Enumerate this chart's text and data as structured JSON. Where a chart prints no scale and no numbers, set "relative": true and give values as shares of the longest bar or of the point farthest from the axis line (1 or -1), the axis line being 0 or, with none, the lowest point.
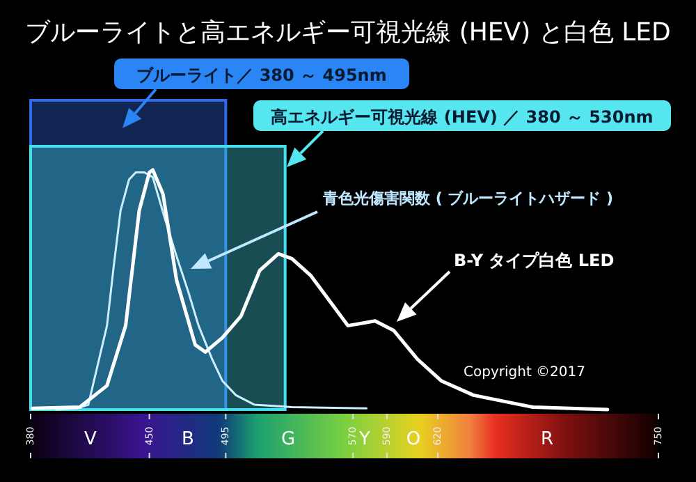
{
  "chart_data": {
    "type": "line",
    "title": "ブルーライトと高エネルギー可視光線 (HEV) と白色 LED",
    "relative": true,
    "xlim": [
      380,
      750
    ],
    "xticks": [
      380,
      450,
      495,
      570,
      590,
      620,
      750
    ],
    "line_style": "solid",
    "series": [
      {
        "name": "青色光傷害関数 ( ブルーライトハザード )",
        "color": "#cdeeff",
        "x": [
          395,
          407,
          414,
          420,
          425,
          429,
          433,
          438,
          442,
          447,
          452,
          459,
          466,
          473,
          479,
          487,
          493,
          501,
          512,
          534,
          578
        ],
        "values": [
          0,
          0.005,
          0.02,
          0.2,
          0.35,
          0.6,
          0.83,
          0.96,
          0.99,
          0.99,
          0.97,
          0.8,
          0.64,
          0.49,
          0.35,
          0.21,
          0.12,
          0.06,
          0.02,
          0.01,
          0.005
        ]
      },
      {
        "name": "B-Y タイプ白色 LED",
        "color": "#ffffff",
        "x": [
          381,
          409,
          425,
          436,
          444,
          450,
          452,
          458,
          466,
          477,
          483,
          493,
          504,
          515,
          526,
          534,
          545,
          567,
          583,
          594,
          608,
          622,
          641,
          676,
          720
        ],
        "values": [
          0.005,
          0.01,
          0.1,
          0.35,
          0.83,
          0.99,
          1,
          0.9,
          0.54,
          0.27,
          0.24,
          0.3,
          0.39,
          0.58,
          0.65,
          0.63,
          0.56,
          0.35,
          0.37,
          0.33,
          0.21,
          0.12,
          0.06,
          0.01,
          0
        ]
      }
    ],
    "bands": [
      {
        "axis": "x",
        "from": 380,
        "to": 495,
        "label": "ブルーライト／ 380 ～ 495nm",
        "color": "#2f6be8"
      },
      {
        "axis": "x",
        "from": 380,
        "to": 530,
        "label": "高エネルギー可視光線 (HEV) ／ 380 ～ 530nm",
        "color": "#45e0ee"
      }
    ],
    "annotations": [
      "Copyright ©2017",
      "V",
      "B",
      "G",
      "Y",
      "O",
      "R"
    ]
  }
}
